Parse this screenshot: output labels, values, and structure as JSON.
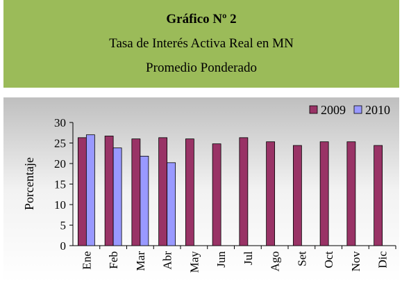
{
  "chart_data": {
    "type": "bar",
    "title": "Gráfico Nº 2",
    "subtitle": [
      "Tasa de Interés Activa Real en MN",
      "Promedio Ponderado"
    ],
    "ylabel": "Porcentaje",
    "categories": [
      "Ene",
      "Feb",
      "Mar",
      "Abr",
      "May",
      "Jun",
      "Jul",
      "Ago",
      "Set",
      "Oct",
      "Nov",
      "Dic"
    ],
    "series": [
      {
        "name": "2009",
        "color": "#993366",
        "values": [
          26.3,
          26.7,
          26.0,
          26.3,
          26.0,
          24.8,
          26.3,
          25.3,
          24.4,
          25.3,
          25.3,
          24.4
        ]
      },
      {
        "name": "2010",
        "color": "#9999ff",
        "values": [
          27.0,
          23.8,
          21.8,
          20.2,
          null,
          null,
          null,
          null,
          null,
          null,
          null,
          null
        ]
      }
    ],
    "ylim": [
      0,
      30
    ],
    "yticks": [
      0,
      5,
      10,
      15,
      20,
      25,
      30
    ],
    "legend": "top-right"
  }
}
